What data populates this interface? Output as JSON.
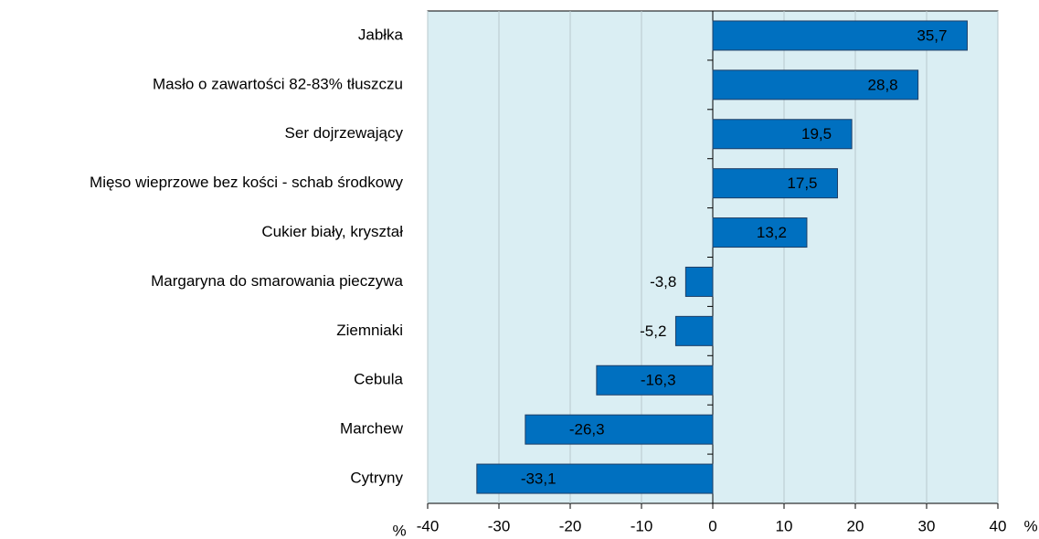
{
  "chart_data": {
    "type": "hbar",
    "categories": [
      "Jabłka",
      "Masło o zawartości 82-83% tłuszczu",
      "Ser dojrzewający",
      "Mięso wieprzowe bez kości - schab środkowy",
      "Cukier biały, kryształ",
      "Margaryna do smarowania pieczywa",
      "Ziemniaki",
      "Cebula",
      "Marchew",
      "Cytryny"
    ],
    "values": [
      35.7,
      28.8,
      19.5,
      17.5,
      13.2,
      -3.8,
      -5.2,
      -16.3,
      -26.3,
      -33.1
    ],
    "value_labels": [
      "35,7",
      "28,8",
      "19,5",
      "17,5",
      "13,2",
      "-3,8",
      "-5,2",
      "-16,3",
      "-26,3",
      "-33,1"
    ],
    "color": "#0070c0",
    "xlim": [
      -40,
      40
    ],
    "xticks": [
      -40,
      -30,
      -20,
      -10,
      0,
      10,
      20,
      30,
      40
    ],
    "axis_labels": [
      "%",
      "%"
    ],
    "grid": true
  }
}
